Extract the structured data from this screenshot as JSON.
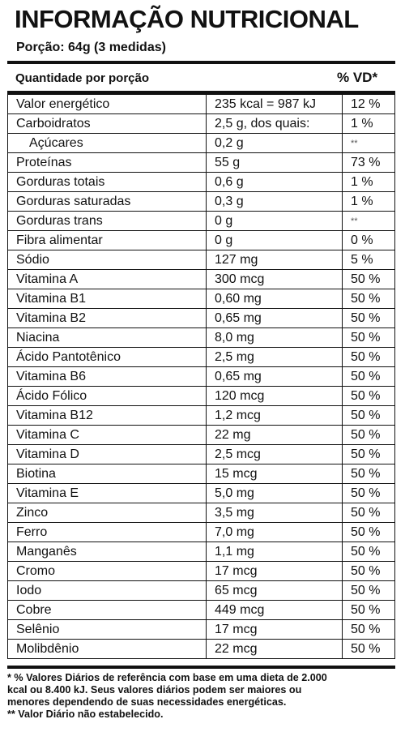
{
  "header": {
    "title": "INFORMAÇÃO NUTRICIONAL",
    "serving": "Porção: 64g (3 medidas)"
  },
  "table": {
    "columns": [
      "Quantidade por porção",
      "% VD*"
    ],
    "rows": [
      [
        "Valor energético",
        "235 kcal = 987 kJ",
        "12 %"
      ],
      [
        "Carboidratos",
        "2,5 g, dos quais:",
        "1 %"
      ],
      [
        "Açúcares",
        "0,2 g",
        "**"
      ],
      [
        "Proteínas",
        "55 g",
        "73 %"
      ],
      [
        "Gorduras totais",
        "0,6 g",
        "1 %"
      ],
      [
        "Gorduras saturadas",
        "0,3 g",
        "1 %"
      ],
      [
        "Gorduras trans",
        "0 g",
        "**"
      ],
      [
        "Fibra alimentar",
        "0 g",
        "0 %"
      ],
      [
        "Sódio",
        "127 mg",
        "5 %"
      ],
      [
        "Vitamina A",
        "300 mcg",
        "50 %"
      ],
      [
        "Vitamina B1",
        "0,60 mg",
        "50 %"
      ],
      [
        "Vitamina B2",
        "0,65 mg",
        "50 %"
      ],
      [
        "Niacina",
        "8,0 mg",
        "50 %"
      ],
      [
        "Ácido Pantotênico",
        "2,5 mg",
        "50 %"
      ],
      [
        "Vitamina B6",
        "0,65 mg",
        "50 %"
      ],
      [
        "Ácido Fólico",
        "120 mcg",
        "50 %"
      ],
      [
        "Vitamina B12",
        "1,2 mcg",
        "50 %"
      ],
      [
        "Vitamina C",
        "22 mg",
        "50 %"
      ],
      [
        "Vitamina D",
        "2,5 mcg",
        "50 %"
      ],
      [
        "Biotina",
        "15 mcg",
        "50 %"
      ],
      [
        "Vitamina E",
        "5,0 mg",
        "50 %"
      ],
      [
        "Zinco",
        "3,5 mg",
        "50 %"
      ],
      [
        "Ferro",
        "7,0 mg",
        "50 %"
      ],
      [
        "Manganês",
        "1,1 mg",
        "50 %"
      ],
      [
        "Cromo",
        "17 mcg",
        "50 %"
      ],
      [
        "Iodo",
        "65 mcg",
        "50 %"
      ],
      [
        "Cobre",
        "449 mcg",
        "50 %"
      ],
      [
        "Selênio",
        "17 mcg",
        "50 %"
      ],
      [
        "Molibdênio",
        "22 mcg",
        "50 %"
      ]
    ]
  },
  "footnote": [
    "* % Valores Diários de referência com base em uma dieta de 2.000",
    "kcal ou 8.400 kJ. Seus valores diários podem ser maiores ou",
    "menores dependendo de suas necessidades energéticas.",
    "** Valor Diário não estabelecido."
  ]
}
